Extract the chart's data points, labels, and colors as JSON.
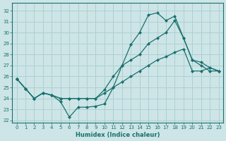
{
  "xlabel": "Humidex (Indice chaleur)",
  "bg_color": "#cde5e6",
  "grid_color": "#aecfd2",
  "line_color": "#1a7070",
  "xlim": [
    -0.5,
    23.5
  ],
  "ylim": [
    21.8,
    32.7
  ],
  "yticks": [
    22,
    23,
    24,
    25,
    26,
    27,
    28,
    29,
    30,
    31,
    32
  ],
  "xticks": [
    0,
    1,
    2,
    3,
    4,
    5,
    6,
    7,
    8,
    9,
    10,
    11,
    12,
    13,
    14,
    15,
    16,
    17,
    18,
    19,
    20,
    21,
    22,
    23
  ],
  "line1_y": [
    25.8,
    24.9,
    24.0,
    24.5,
    24.3,
    23.7,
    22.3,
    23.2,
    23.2,
    23.3,
    23.5,
    25.0,
    27.0,
    28.9,
    30.0,
    31.6,
    31.8,
    31.1,
    31.5,
    29.5,
    27.5,
    27.0,
    26.5,
    26.5
  ],
  "line2_y": [
    25.8,
    24.9,
    24.0,
    24.5,
    24.3,
    24.0,
    24.0,
    24.0,
    24.0,
    24.0,
    24.8,
    26.0,
    27.0,
    27.5,
    28.0,
    29.0,
    29.5,
    30.0,
    31.1,
    29.5,
    27.5,
    27.3,
    26.8,
    26.5
  ],
  "line3_y": [
    25.8,
    24.9,
    24.0,
    24.5,
    24.3,
    24.0,
    24.0,
    24.0,
    24.0,
    24.0,
    24.5,
    25.0,
    25.5,
    26.0,
    26.5,
    27.0,
    27.5,
    27.8,
    28.2,
    28.5,
    26.5,
    26.5,
    26.8,
    26.5
  ]
}
